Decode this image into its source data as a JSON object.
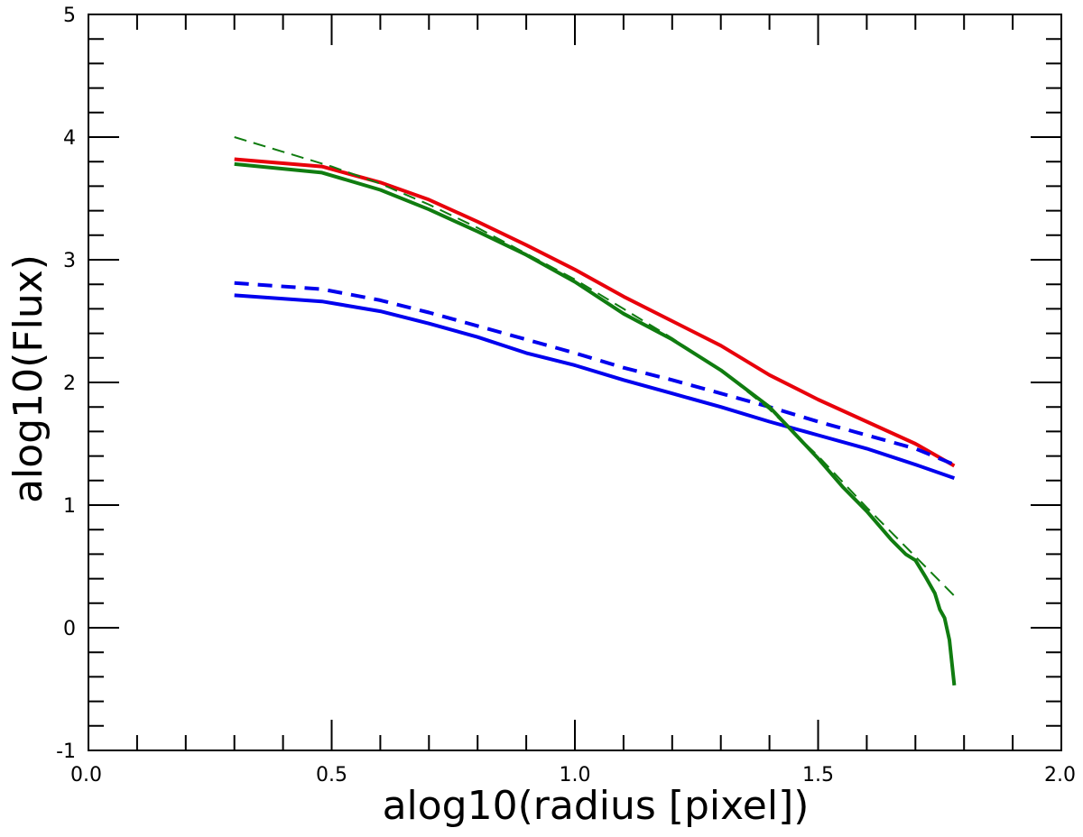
{
  "chart_data": {
    "type": "line",
    "title": "",
    "xlabel": "alog10(radius [pixel])",
    "ylabel": "alog10(Flux)",
    "xlim": [
      0.0,
      2.0
    ],
    "ylim": [
      -1,
      5
    ],
    "grid": false,
    "legend": "none",
    "x_major_ticks": [
      0.0,
      0.5,
      1.0,
      1.5,
      2.0
    ],
    "x_tick_labels": [
      "0.0",
      "0.5",
      "1.0",
      "1.5",
      "2.0"
    ],
    "y_major_ticks": [
      -1,
      0,
      1,
      2,
      3,
      4,
      5
    ],
    "y_tick_labels": [
      "-1",
      "0",
      "1",
      "2",
      "3",
      "4",
      "5"
    ],
    "x_minor_step": 0.1,
    "y_minor_step": 0.2,
    "series": [
      {
        "color": "#e8000b",
        "dash": "solid",
        "width": "thick",
        "points": [
          [
            0.3,
            3.82
          ],
          [
            0.48,
            3.76
          ],
          [
            0.6,
            3.63
          ],
          [
            0.7,
            3.49
          ],
          [
            0.8,
            3.31
          ],
          [
            0.9,
            3.12
          ],
          [
            1.0,
            2.92
          ],
          [
            1.1,
            2.7
          ],
          [
            1.2,
            2.5
          ],
          [
            1.3,
            2.3
          ],
          [
            1.4,
            2.06
          ],
          [
            1.5,
            1.86
          ],
          [
            1.6,
            1.68
          ],
          [
            1.7,
            1.5
          ],
          [
            1.78,
            1.32
          ]
        ]
      },
      {
        "color": "#0000ee",
        "dash": "solid",
        "width": "thick",
        "points": [
          [
            0.3,
            2.71
          ],
          [
            0.48,
            2.66
          ],
          [
            0.6,
            2.58
          ],
          [
            0.7,
            2.48
          ],
          [
            0.8,
            2.37
          ],
          [
            0.9,
            2.24
          ],
          [
            1.0,
            2.14
          ],
          [
            1.1,
            2.02
          ],
          [
            1.2,
            1.91
          ],
          [
            1.3,
            1.8
          ],
          [
            1.4,
            1.68
          ],
          [
            1.5,
            1.57
          ],
          [
            1.6,
            1.46
          ],
          [
            1.7,
            1.33
          ],
          [
            1.78,
            1.22
          ]
        ]
      },
      {
        "color": "#0000ee",
        "dash": "dashed",
        "width": "thick",
        "points": [
          [
            0.3,
            2.81
          ],
          [
            0.48,
            2.76
          ],
          [
            0.6,
            2.67
          ],
          [
            0.7,
            2.57
          ],
          [
            0.8,
            2.46
          ],
          [
            0.9,
            2.35
          ],
          [
            1.0,
            2.24
          ],
          [
            1.1,
            2.12
          ],
          [
            1.2,
            2.02
          ],
          [
            1.3,
            1.91
          ],
          [
            1.4,
            1.8
          ],
          [
            1.5,
            1.68
          ],
          [
            1.6,
            1.57
          ],
          [
            1.7,
            1.46
          ],
          [
            1.78,
            1.33
          ]
        ]
      },
      {
        "color": "#107c10",
        "dash": "solid",
        "width": "thick",
        "points": [
          [
            0.3,
            3.78
          ],
          [
            0.48,
            3.71
          ],
          [
            0.6,
            3.57
          ],
          [
            0.7,
            3.41
          ],
          [
            0.8,
            3.23
          ],
          [
            0.9,
            3.04
          ],
          [
            1.0,
            2.82
          ],
          [
            1.1,
            2.56
          ],
          [
            1.2,
            2.35
          ],
          [
            1.3,
            2.1
          ],
          [
            1.4,
            1.8
          ],
          [
            1.5,
            1.38
          ],
          [
            1.55,
            1.15
          ],
          [
            1.6,
            0.95
          ],
          [
            1.65,
            0.72
          ],
          [
            1.68,
            0.6
          ],
          [
            1.7,
            0.55
          ],
          [
            1.72,
            0.42
          ],
          [
            1.74,
            0.28
          ],
          [
            1.75,
            0.15
          ],
          [
            1.76,
            0.08
          ],
          [
            1.77,
            -0.1
          ],
          [
            1.78,
            -0.47
          ]
        ]
      },
      {
        "color": "#107c10",
        "dash": "dashed",
        "width": "thin",
        "points": [
          [
            0.3,
            4.0
          ],
          [
            0.4,
            3.88
          ],
          [
            0.5,
            3.76
          ],
          [
            0.6,
            3.62
          ],
          [
            0.7,
            3.45
          ],
          [
            0.8,
            3.26
          ],
          [
            0.9,
            3.05
          ],
          [
            1.0,
            2.84
          ],
          [
            1.1,
            2.6
          ],
          [
            1.2,
            2.36
          ],
          [
            1.3,
            2.1
          ],
          [
            1.4,
            1.78
          ],
          [
            1.5,
            1.4
          ],
          [
            1.6,
            0.98
          ],
          [
            1.7,
            0.58
          ],
          [
            1.78,
            0.26
          ]
        ]
      }
    ]
  }
}
